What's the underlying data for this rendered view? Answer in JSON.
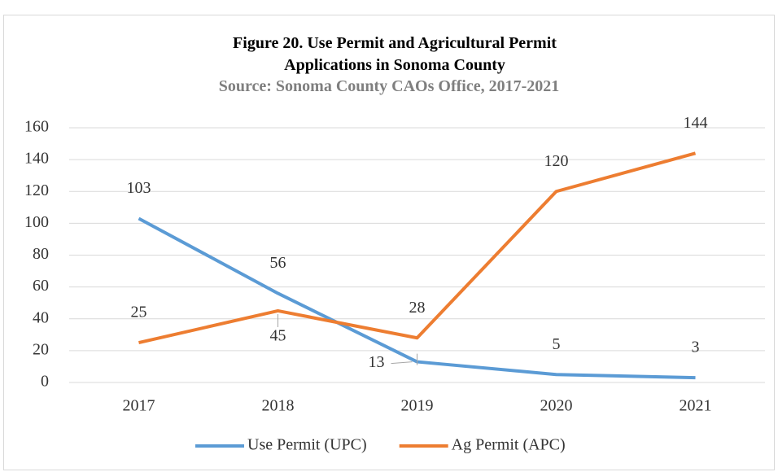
{
  "chart_data": {
    "type": "line",
    "title": "Figure 20. Use Permit and Agricultural Permit Applications  in Sonoma  County",
    "subtitle": "Source: Sonoma County  CAOs Office, 2017-2021",
    "categories": [
      "2017",
      "2018",
      "2019",
      "2020",
      "2021"
    ],
    "series": [
      {
        "name": "Use Permit (UPC)",
        "color": "#5b9bd5",
        "values": [
          103,
          56,
          13,
          5,
          3
        ]
      },
      {
        "name": "Ag Permit (APC)",
        "color": "#ed7d31",
        "values": [
          25,
          45,
          28,
          120,
          144
        ]
      }
    ],
    "ylim": [
      0,
      160
    ],
    "yticks": [
      0,
      20,
      40,
      60,
      80,
      100,
      120,
      140,
      160
    ],
    "grid": true,
    "legend": "bottom"
  }
}
